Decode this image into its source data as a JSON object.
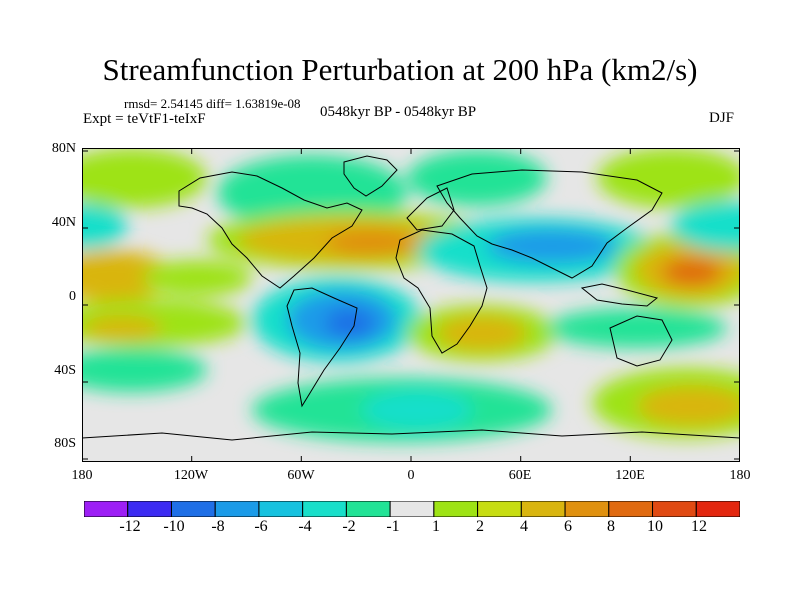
{
  "title": "Streamfunction Perturbation at 200 hPa (km2/s)",
  "stats": "rmsd= 2.54145 diff= 1.63819e-08",
  "experiment": "Expt = teVtF1-teIxF",
  "period": "0548kyr BP - 0548kyr BP",
  "season": "DJF",
  "map": {
    "lat_labels": [
      "80N",
      "40N",
      "0",
      "40S",
      "80S"
    ],
    "lon_labels": [
      "180",
      "120W",
      "60W",
      "0",
      "60E",
      "120E",
      "180"
    ]
  },
  "colorbar": {
    "labels": [
      "-12",
      "-10",
      "-8",
      "-6",
      "-4",
      "-2",
      "-1",
      "1",
      "2",
      "4",
      "6",
      "8",
      "10",
      "12"
    ],
    "colors": [
      "#9d1ff5",
      "#3c2bf2",
      "#1f6fe6",
      "#1b9be8",
      "#17c2df",
      "#19dfca",
      "#22e396",
      "#e6e6e6",
      "#9ee314",
      "#c7dd12",
      "#d9b50f",
      "#e0910f",
      "#e06a10",
      "#e04a13",
      "#e3270f"
    ]
  },
  "colors": {
    "background": "#ffffff",
    "neutral": "#e6e6e6",
    "coast": "#000000"
  }
}
